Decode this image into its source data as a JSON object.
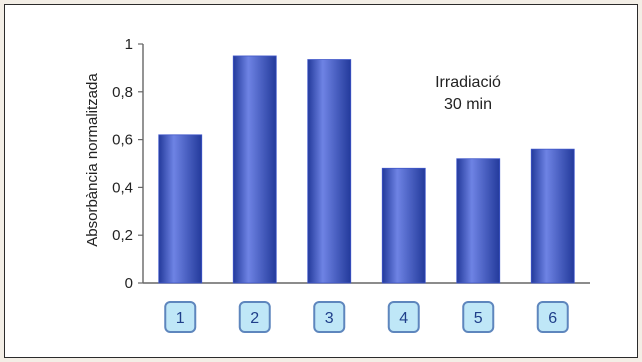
{
  "colors": {
    "bar": "#3f56c9",
    "bar_edge": "#233a9b",
    "bar_highlight": "#6e83e4",
    "badge_fill": "#bfe7f7",
    "badge_border": "#5e86bd",
    "axis": "#666666",
    "text": "#222222"
  },
  "chart_data": {
    "type": "bar",
    "categories": [
      "1",
      "2",
      "3",
      "4",
      "5",
      "6"
    ],
    "values": [
      0.62,
      0.95,
      0.935,
      0.48,
      0.52,
      0.56
    ],
    "title": "",
    "annotation": [
      "Irradiació",
      "30 min"
    ],
    "xlabel": "",
    "ylabel": "Absorbància normalitzada",
    "ylim": [
      0,
      1
    ],
    "yticks": [
      0,
      0.2,
      0.4,
      0.6,
      0.8,
      1
    ],
    "ytick_labels": [
      "0",
      "0,2",
      "0,4",
      "0,6",
      "0,8",
      "1"
    ],
    "grid": false,
    "legend": "none"
  }
}
